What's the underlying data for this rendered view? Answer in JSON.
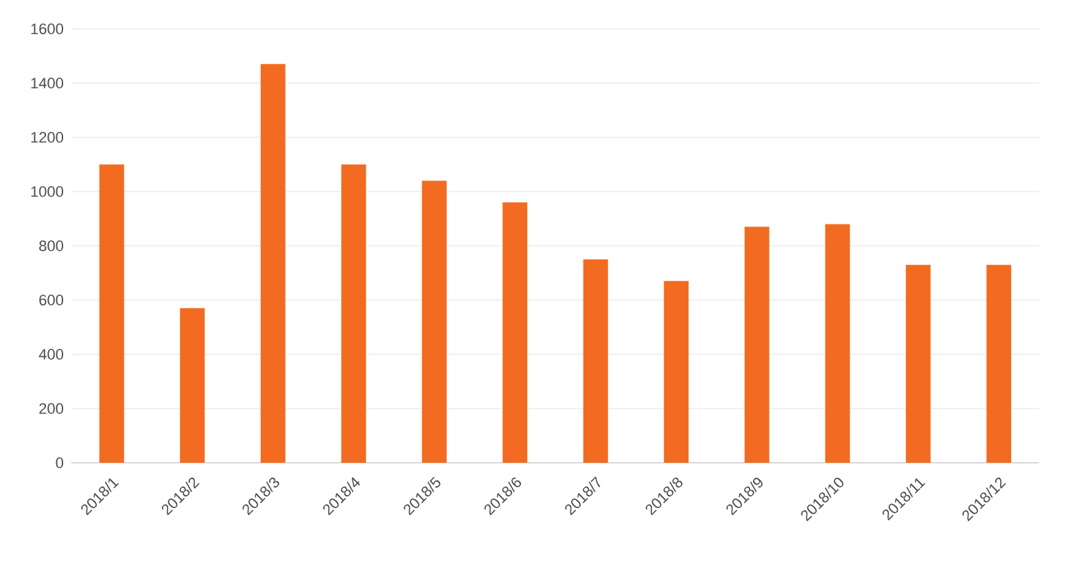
{
  "chart_data": {
    "type": "bar",
    "categories": [
      "2018/1",
      "2018/2",
      "2018/3",
      "2018/4",
      "2018/5",
      "2018/6",
      "2018/7",
      "2018/8",
      "2018/9",
      "2018/10",
      "2018/11",
      "2018/12"
    ],
    "values": [
      1100,
      570,
      1470,
      1100,
      1040,
      960,
      750,
      670,
      870,
      880,
      730,
      730
    ],
    "color": "#f26b21",
    "ylim": [
      0,
      1600
    ],
    "yticks": [
      0,
      200,
      400,
      600,
      800,
      1000,
      1200,
      1400,
      1600
    ],
    "grid": "y"
  }
}
